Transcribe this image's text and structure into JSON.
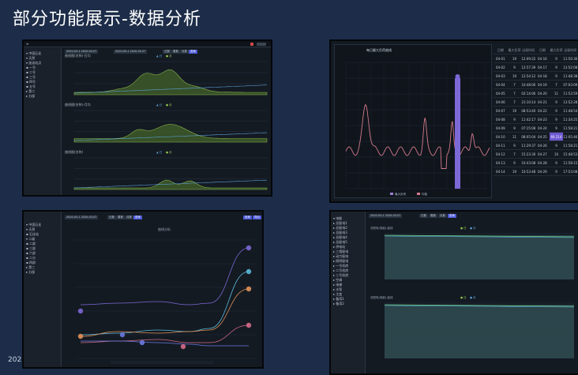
{
  "page": {
    "title": "部分功能展示-数据分析",
    "footer": "202"
  },
  "colors": {
    "bg": "#1d2d49",
    "panel": "#141a22",
    "accent": "#4c5ad6",
    "area": "#3e5a2a",
    "line_green": "#9acb52",
    "line_blue": "#5aa2d8",
    "line_purple": "#7c68d6",
    "line_pink": "#d47a8a"
  },
  "s1": {
    "toolbar": [
      "2020-03-1 2020-03-07",
      "2020-05-1 2020-05-07",
      "日报",
      "周报",
      "月报",
      "查询"
    ],
    "tree": [
      "▾ 中国石化",
      "▾ 天然",
      "▾ 加油站点",
      "  ▪ 一号",
      "  ▪ 二号",
      "  ▪ 三号",
      "  ▪ 四号",
      "  ▪ 五号",
      "▸ 第二",
      "▸ 分部"
    ],
    "charts": [
      "曲线图(名称)-日均",
      "曲线图(名称)-月均",
      "曲线图(名称)"
    ],
    "legend": [
      "▲ 日",
      "● 月"
    ]
  },
  "s2": {
    "title": "每日最大负荷曲线",
    "legend": [
      "最大负荷",
      "均值"
    ],
    "headers": [
      "日期",
      "最大负荷",
      "出现时间",
      "日期",
      "最大负荷",
      "出现时间"
    ],
    "rows": [
      [
        "04-01",
        "19",
        "12:09:22",
        "04-16",
        "9",
        "11:50:36"
      ],
      [
        "04-02",
        "9",
        "12:57:39",
        "04-17",
        "9",
        "13:52:08"
      ],
      [
        "04-03",
        "19",
        "12:54:12",
        "04-18",
        "9",
        "11:48:38"
      ],
      [
        "04-04",
        "7",
        "10:48:06",
        "04-19",
        "7",
        "07:03:09"
      ],
      [
        "04-05",
        "7",
        "02:14:06",
        "04-20",
        "11",
        "11:53:59"
      ],
      [
        "04-06",
        "7",
        "21:10:14",
        "04-21",
        "9",
        "13:52:28"
      ],
      [
        "04-07",
        "19",
        "08:53:40",
        "04-22",
        "9",
        "11:48:54"
      ],
      [
        "04-08",
        "9",
        "11:42:17",
        "04-23",
        "9",
        "11:34:25"
      ],
      [
        "04-09",
        "9",
        "07:15:08",
        "04-24",
        "9",
        "11:58:21"
      ],
      [
        "04-10",
        "11",
        "08:05:04",
        "04-25",
        "69.214",
        "11:05:46"
      ],
      [
        "04-11",
        "9",
        "11:29:37",
        "04-26",
        "9",
        "11:58:21"
      ],
      [
        "04-12",
        "7",
        "15:23:30",
        "04-27",
        "10",
        "15:48:53"
      ],
      [
        "04-13",
        "9",
        "10:43:08",
        "04-28",
        "9",
        "11:58:15"
      ],
      [
        "04-14",
        "19",
        "10:53:48",
        "04-29",
        "9",
        "17:53:08"
      ]
    ]
  },
  "s3": {
    "toolbar": [
      "2020-03-1 2020-03-07",
      "日报",
      "周报",
      "月报",
      "查询"
    ],
    "tree": [
      "▾ 中国石化",
      "▾ 天然",
      "  ▪ 石化站",
      "▾ 二级",
      "  ▪ 二部",
      "  ▪ 三部",
      "  ▪ 六部",
      "  ▪ 二分",
      "  ▪ 四部",
      "▸ 第三",
      "▸ 分部"
    ],
    "chart_title": "曲线分析",
    "right_buttons": [
      "查询",
      "导出"
    ]
  },
  "s4": {
    "toolbar": [
      "2020-03-1 2020-03-07",
      "日报",
      "周报",
      "月报",
      "查询"
    ],
    "tree": [
      "▾ 电能",
      "▸ 总配电1",
      "▸ 总配电2",
      "▸ 总配电3",
      "▸ 总配电4",
      "▸ 总配电5",
      "  ▸ 供电站",
      "  ▸ 三相配电",
      "  ▸ 动力配电",
      "  ▸ 照明配电",
      "  ▸ 一号机房",
      "  ▸ 二号机房",
      "  ▸ 三号机房",
      "  ▸ 空调",
      "  ▸ 电梯",
      "  ▸ 水泵",
      "  ▸ 主变",
      "  ▸ 备用1",
      "  ▸ 备用2"
    ],
    "chart_titles": [
      "总配电(电能)-曲线",
      "总配电(电能)-曲线"
    ],
    "legend": [
      "● 日",
      "● 月"
    ]
  }
}
